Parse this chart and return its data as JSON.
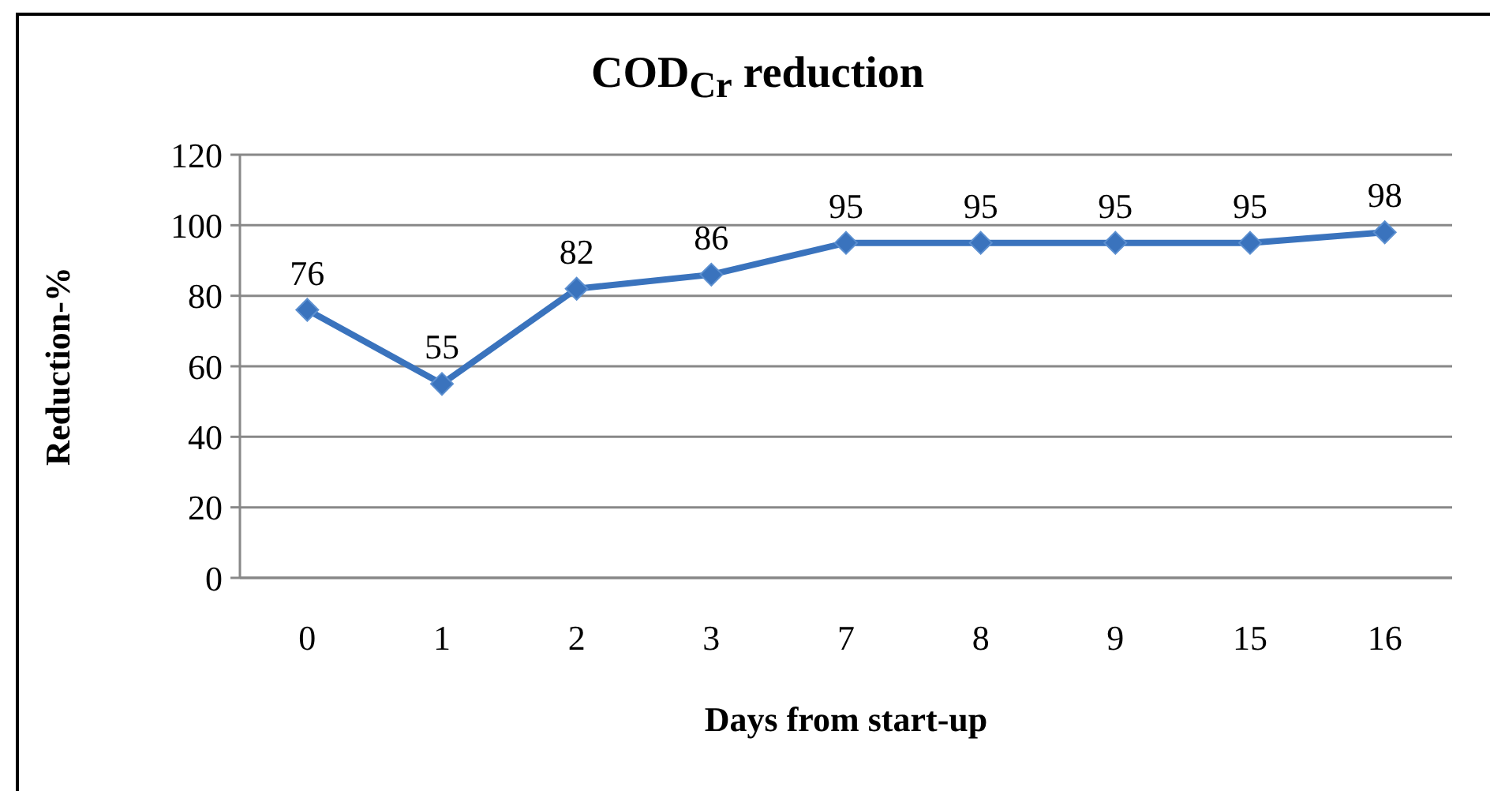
{
  "chart_data": {
    "type": "line",
    "title": "COD$_{Cr}$ reduction",
    "xlabel": "Days from start-up",
    "ylabel": "Reduction-%",
    "categories": [
      "0",
      "1",
      "2",
      "3",
      "7",
      "8",
      "9",
      "15",
      "16"
    ],
    "series": [
      {
        "color": "#3a73bd",
        "values": [
          76,
          55,
          82,
          86,
          95,
          95,
          95,
          95,
          98
        ]
      }
    ],
    "ylim": [
      0,
      120
    ],
    "yticks": [
      0,
      20,
      40,
      60,
      80,
      100,
      120
    ],
    "grid": "y",
    "data_labels": true,
    "marker": "diamond",
    "line_style": "solid"
  }
}
